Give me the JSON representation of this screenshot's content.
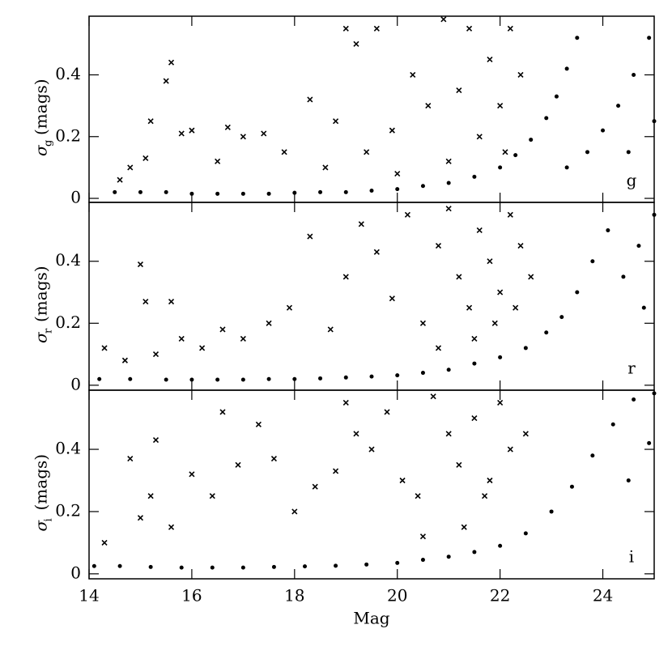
{
  "chart_data": [
    {
      "type": "scatter",
      "panel_label": "g",
      "ylabel": {
        "symbol": "σ",
        "sub": "g",
        "unit": "(mags)"
      },
      "xlim": [
        14,
        25
      ],
      "xticks": [
        14,
        16,
        18,
        20,
        22,
        24
      ],
      "ylim": [
        -0.013,
        0.59
      ],
      "yticks": [
        0,
        0.2,
        0.4
      ],
      "series": [
        {
          "marker": "dot",
          "color": "#000",
          "x": [
            14.5,
            15,
            15.5,
            16,
            16.5,
            17,
            17.5,
            18,
            18.5,
            19,
            19.5,
            20,
            20.5,
            21,
            21.5,
            22,
            22.3,
            22.6,
            22.9,
            23.1,
            23.3,
            23.5,
            23.3,
            23.7,
            24,
            24.3,
            24.6,
            24.9,
            24.5,
            25
          ],
          "values": [
            0.02,
            0.02,
            0.02,
            0.015,
            0.015,
            0.015,
            0.015,
            0.018,
            0.02,
            0.02,
            0.025,
            0.03,
            0.04,
            0.05,
            0.07,
            0.1,
            0.14,
            0.19,
            0.26,
            0.33,
            0.42,
            0.52,
            0.1,
            0.15,
            0.22,
            0.3,
            0.4,
            0.52,
            0.15,
            0.25
          ]
        },
        {
          "marker": "cross",
          "color": "#000",
          "x": [
            14.6,
            14.8,
            15.1,
            15.2,
            15.5,
            15.6,
            15.8,
            16,
            16.5,
            16.7,
            17,
            17.4,
            17.8,
            18.3,
            18.6,
            18.8,
            19,
            19.2,
            19.4,
            19.6,
            19.9,
            20.3,
            20.6,
            20.9,
            21.2,
            21.4,
            21.6,
            21.8,
            22,
            22.2,
            22.4,
            22.1,
            21,
            20
          ],
          "values": [
            0.06,
            0.1,
            0.13,
            0.25,
            0.38,
            0.44,
            0.21,
            0.22,
            0.12,
            0.23,
            0.2,
            0.21,
            0.15,
            0.32,
            0.1,
            0.25,
            0.55,
            0.5,
            0.15,
            0.55,
            0.22,
            0.4,
            0.3,
            0.58,
            0.35,
            0.55,
            0.2,
            0.45,
            0.3,
            0.55,
            0.4,
            0.15,
            0.12,
            0.08
          ]
        }
      ]
    },
    {
      "type": "scatter",
      "panel_label": "r",
      "ylabel": {
        "symbol": "σ",
        "sub": "r",
        "unit": "(mags)"
      },
      "xlim": [
        14,
        25
      ],
      "xticks": [
        14,
        16,
        18,
        20,
        22,
        24
      ],
      "ylim": [
        -0.016,
        0.59
      ],
      "yticks": [
        0,
        0.2,
        0.4
      ],
      "series": [
        {
          "marker": "dot",
          "color": "#000",
          "x": [
            14.2,
            14.8,
            15.5,
            16,
            16.5,
            17,
            17.5,
            18,
            18.5,
            19,
            19.5,
            20,
            20.5,
            21,
            21.5,
            22,
            22.5,
            22.9,
            23.2,
            23.5,
            23.8,
            24.1,
            24.4,
            24.7,
            25,
            24.8
          ],
          "values": [
            0.02,
            0.02,
            0.018,
            0.018,
            0.018,
            0.018,
            0.02,
            0.02,
            0.022,
            0.025,
            0.028,
            0.032,
            0.04,
            0.05,
            0.07,
            0.09,
            0.12,
            0.17,
            0.22,
            0.3,
            0.4,
            0.5,
            0.35,
            0.45,
            0.55,
            0.25
          ]
        },
        {
          "marker": "cross",
          "color": "#000",
          "x": [
            14.3,
            14.7,
            15,
            15.1,
            15.3,
            15.6,
            15.8,
            16.2,
            16.6,
            17,
            17.5,
            17.9,
            18.3,
            18.7,
            19,
            19.3,
            19.6,
            19.9,
            20.2,
            20.5,
            20.8,
            21,
            21.2,
            21.4,
            21.6,
            21.8,
            22,
            22.2,
            22.4,
            22.6,
            21.5,
            20.8,
            21.9,
            22.3
          ],
          "values": [
            0.12,
            0.08,
            0.39,
            0.27,
            0.1,
            0.27,
            0.15,
            0.12,
            0.18,
            0.15,
            0.2,
            0.25,
            0.48,
            0.18,
            0.35,
            0.52,
            0.43,
            0.28,
            0.55,
            0.2,
            0.45,
            0.57,
            0.35,
            0.25,
            0.5,
            0.4,
            0.3,
            0.55,
            0.45,
            0.35,
            0.15,
            0.12,
            0.2,
            0.25
          ]
        }
      ]
    },
    {
      "type": "scatter",
      "panel_label": "i",
      "ylabel": {
        "symbol": "σ",
        "sub": "i",
        "unit": "(mags)"
      },
      "xlabel": "Mag",
      "xlim": [
        14,
        25
      ],
      "xticks": [
        14,
        16,
        18,
        20,
        22,
        24
      ],
      "ylim": [
        -0.016,
        0.59
      ],
      "yticks": [
        0,
        0.2,
        0.4
      ],
      "series": [
        {
          "marker": "dot",
          "color": "#000",
          "x": [
            14.1,
            14.6,
            15.2,
            15.8,
            16.4,
            17,
            17.6,
            18.2,
            18.8,
            19.4,
            20,
            20.5,
            21,
            21.5,
            22,
            22.5,
            23,
            23.4,
            23.8,
            24.2,
            24.6,
            25,
            24.5,
            24.9
          ],
          "values": [
            0.025,
            0.025,
            0.022,
            0.02,
            0.02,
            0.02,
            0.022,
            0.024,
            0.026,
            0.03,
            0.035,
            0.045,
            0.055,
            0.07,
            0.09,
            0.13,
            0.2,
            0.28,
            0.38,
            0.48,
            0.56,
            0.58,
            0.3,
            0.42
          ]
        },
        {
          "marker": "cross",
          "color": "#000",
          "x": [
            14.3,
            14.8,
            15,
            15.2,
            15.3,
            15.6,
            16,
            16.4,
            16.6,
            16.9,
            17.3,
            17.6,
            18,
            18.4,
            18.8,
            19,
            19.2,
            19.5,
            19.8,
            20.1,
            20.4,
            20.7,
            21,
            21.2,
            21.5,
            21.7,
            22,
            22.2,
            22.5,
            21.3,
            20.5,
            21.8
          ],
          "values": [
            0.1,
            0.37,
            0.18,
            0.25,
            0.43,
            0.15,
            0.32,
            0.25,
            0.52,
            0.35,
            0.48,
            0.37,
            0.2,
            0.28,
            0.33,
            0.55,
            0.45,
            0.4,
            0.52,
            0.3,
            0.25,
            0.57,
            0.45,
            0.35,
            0.5,
            0.25,
            0.55,
            0.4,
            0.45,
            0.15,
            0.12,
            0.3
          ]
        }
      ]
    }
  ]
}
